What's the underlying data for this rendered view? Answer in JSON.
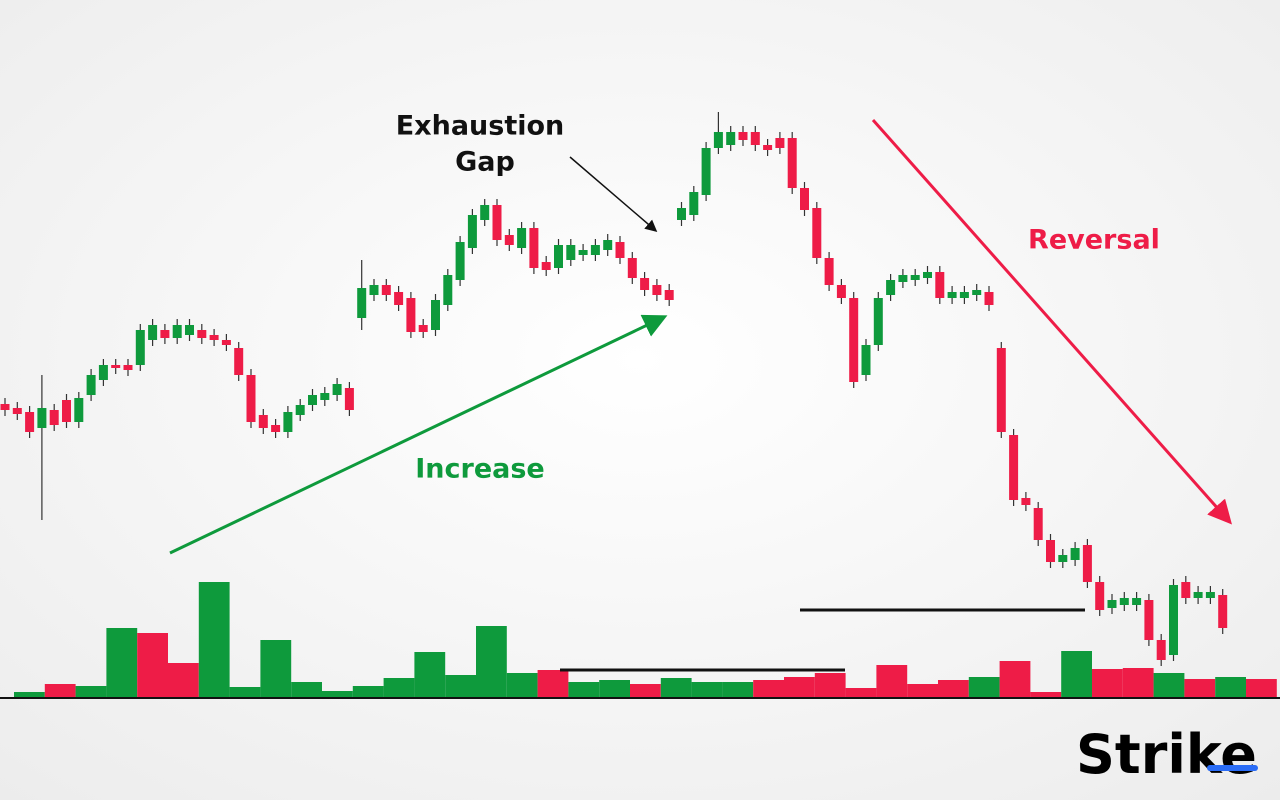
{
  "chart_data": {
    "type": "candlestick",
    "annotations": {
      "gap_line1": "Exhaustion",
      "gap_line2": "Gap",
      "increase": "Increase",
      "reversal": "Reversal"
    },
    "brand": "Strike",
    "up_color": "#0e9a3c",
    "down_color": "#ee1c47",
    "ylim": [
      0,
      800
    ],
    "candles": [
      [
        396,
        402,
        384,
        390
      ],
      [
        392,
        398,
        380,
        386
      ],
      [
        388,
        394,
        362,
        368
      ],
      [
        372,
        425,
        280,
        392
      ],
      [
        390,
        396,
        369,
        375
      ],
      [
        400,
        406,
        372,
        378
      ],
      [
        378,
        408,
        372,
        402
      ],
      [
        405,
        431,
        399,
        425
      ],
      [
        420,
        441,
        414,
        435
      ],
      [
        435,
        441,
        426,
        432
      ],
      [
        435,
        441,
        424,
        430
      ],
      [
        435,
        476,
        429,
        470
      ],
      [
        460,
        481,
        454,
        475
      ],
      [
        470,
        476,
        456,
        462
      ],
      [
        462,
        481,
        456,
        475
      ],
      [
        465,
        481,
        459,
        475
      ],
      [
        470,
        476,
        456,
        462
      ],
      [
        465,
        471,
        454,
        460
      ],
      [
        460,
        466,
        449,
        455
      ],
      [
        452,
        458,
        419,
        425
      ],
      [
        425,
        431,
        372,
        378
      ],
      [
        385,
        391,
        366,
        372
      ],
      [
        375,
        381,
        362,
        368
      ],
      [
        368,
        394,
        362,
        388
      ],
      [
        385,
        401,
        379,
        395
      ],
      [
        395,
        411,
        389,
        405
      ],
      [
        400,
        413,
        394,
        407
      ],
      [
        405,
        422,
        399,
        416
      ],
      [
        412,
        418,
        384,
        390
      ],
      [
        482,
        540,
        470,
        512
      ],
      [
        505,
        521,
        499,
        515
      ],
      [
        515,
        521,
        499,
        505
      ],
      [
        508,
        514,
        489,
        495
      ],
      [
        502,
        508,
        462,
        468
      ],
      [
        475,
        481,
        462,
        468
      ],
      [
        470,
        506,
        464,
        500
      ],
      [
        495,
        531,
        489,
        525
      ],
      [
        520,
        564,
        514,
        558
      ],
      [
        552,
        591,
        546,
        585
      ],
      [
        580,
        601,
        574,
        595
      ],
      [
        595,
        601,
        554,
        560
      ],
      [
        565,
        571,
        549,
        555
      ],
      [
        552,
        578,
        546,
        572
      ],
      [
        572,
        578,
        526,
        532
      ],
      [
        538,
        544,
        524,
        530
      ],
      [
        532,
        561,
        526,
        555
      ],
      [
        540,
        561,
        534,
        555
      ],
      [
        545,
        556,
        539,
        550
      ],
      [
        545,
        561,
        539,
        555
      ],
      [
        550,
        566,
        544,
        560
      ],
      [
        558,
        564,
        536,
        542
      ],
      [
        542,
        548,
        516,
        522
      ],
      [
        522,
        528,
        504,
        510
      ],
      [
        515,
        521,
        499,
        505
      ],
      [
        510,
        516,
        494,
        500
      ],
      [
        580,
        598,
        574,
        592
      ],
      [
        585,
        614,
        579,
        608
      ],
      [
        605,
        658,
        599,
        652
      ],
      [
        652,
        688,
        646,
        668
      ],
      [
        655,
        674,
        649,
        668
      ],
      [
        668,
        674,
        654,
        660
      ],
      [
        668,
        674,
        649,
        655
      ],
      [
        655,
        661,
        644,
        650
      ],
      [
        662,
        668,
        646,
        652
      ],
      [
        662,
        668,
        606,
        612
      ],
      [
        612,
        618,
        584,
        590
      ],
      [
        592,
        598,
        536,
        542
      ],
      [
        542,
        548,
        509,
        515
      ],
      [
        515,
        521,
        496,
        502
      ],
      [
        502,
        508,
        412,
        418
      ],
      [
        425,
        461,
        419,
        455
      ],
      [
        455,
        508,
        449,
        502
      ],
      [
        505,
        526,
        499,
        520
      ],
      [
        518,
        531,
        512,
        525
      ],
      [
        520,
        531,
        514,
        525
      ],
      [
        522,
        534,
        516,
        528
      ],
      [
        528,
        534,
        496,
        502
      ],
      [
        502,
        514,
        496,
        508
      ],
      [
        502,
        514,
        496,
        508
      ],
      [
        505,
        516,
        499,
        510
      ],
      [
        508,
        514,
        489,
        495
      ],
      [
        452,
        458,
        362,
        368
      ],
      [
        365,
        371,
        294,
        300
      ],
      [
        302,
        308,
        289,
        295
      ],
      [
        292,
        298,
        254,
        260
      ],
      [
        260,
        266,
        232,
        238
      ],
      [
        238,
        251,
        232,
        245
      ],
      [
        240,
        258,
        234,
        252
      ],
      [
        255,
        261,
        212,
        218
      ],
      [
        218,
        224,
        184,
        190
      ],
      [
        192,
        206,
        186,
        200
      ],
      [
        195,
        208,
        189,
        202
      ],
      [
        195,
        208,
        189,
        202
      ],
      [
        200,
        206,
        154,
        160
      ],
      [
        160,
        166,
        134,
        140
      ],
      [
        145,
        221,
        139,
        215
      ],
      [
        218,
        224,
        196,
        202
      ],
      [
        202,
        214,
        196,
        208
      ],
      [
        202,
        214,
        196,
        208
      ],
      [
        205,
        211,
        166,
        172
      ]
    ],
    "volume_lim": [
      0,
      120
    ],
    "volume": [
      5,
      13,
      11,
      69,
      64,
      34,
      115,
      10,
      57,
      15,
      6,
      11,
      19,
      45,
      22,
      71,
      24,
      27,
      15,
      17,
      13,
      19,
      15,
      15,
      17,
      20,
      24,
      9,
      32,
      13,
      17,
      20,
      36,
      5,
      46,
      28,
      29,
      24,
      18,
      20,
      18
    ],
    "volume_colors": [
      "#0e9a3c",
      "#ee1c47",
      "#0e9a3c",
      "#0e9a3c",
      "#ee1c47",
      "#ee1c47",
      "#0e9a3c",
      "#0e9a3c",
      "#0e9a3c",
      "#0e9a3c",
      "#0e9a3c",
      "#0e9a3c",
      "#0e9a3c",
      "#0e9a3c",
      "#0e9a3c",
      "#0e9a3c",
      "#0e9a3c",
      "#ee1c47",
      "#0e9a3c",
      "#0e9a3c",
      "#ee1c47",
      "#0e9a3c",
      "#0e9a3c",
      "#0e9a3c",
      "#ee1c47",
      "#ee1c47",
      "#ee1c47",
      "#ee1c47",
      "#ee1c47",
      "#ee1c47",
      "#ee1c47",
      "#0e9a3c",
      "#ee1c47",
      "#ee1c47",
      "#0e9a3c",
      "#ee1c47",
      "#ee1c47",
      "#0e9a3c",
      "#ee1c47",
      "#0e9a3c",
      "#ee1c47"
    ]
  }
}
